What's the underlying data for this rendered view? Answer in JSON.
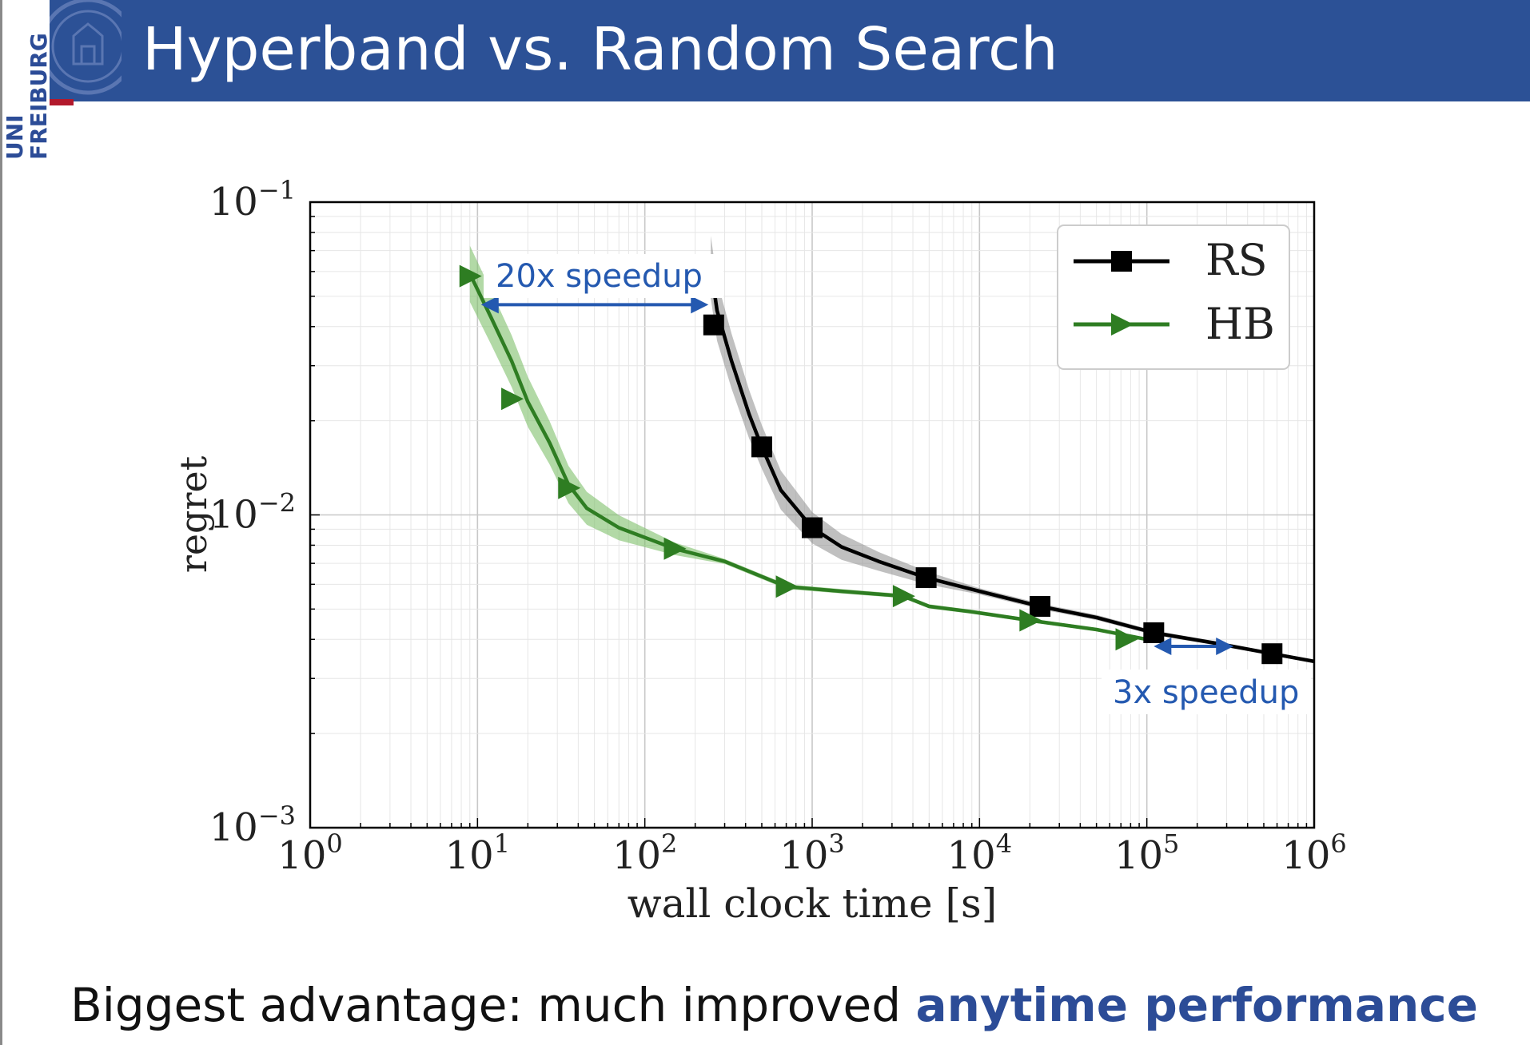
{
  "slide": {
    "title": "Hyperband vs. Random Search",
    "logo_line1": "UNI",
    "logo_line2": "FREIBURG",
    "caption_plain": "Biggest advantage: much improved ",
    "caption_emphasis": "anytime performance"
  },
  "colors": {
    "banner": "#2c5196",
    "rs": "#000000",
    "hb": "#2e7d22",
    "hb_band": "#7fbf6a",
    "rs_band": "#8c8c8c",
    "annotation": "#2459b0",
    "emphasis": "#2c4c97"
  },
  "chart_data": {
    "type": "line",
    "xscale": "log",
    "yscale": "log",
    "xlim": [
      1,
      1000000
    ],
    "ylim": [
      0.001,
      0.1
    ],
    "xlabel": "wall clock time [s]",
    "ylabel": "regret",
    "grid": true,
    "legend_position": "top-right",
    "x_ticks": [
      {
        "value": 1,
        "base": "10",
        "exp": "0"
      },
      {
        "value": 10,
        "base": "10",
        "exp": "1"
      },
      {
        "value": 100,
        "base": "10",
        "exp": "2"
      },
      {
        "value": 1000,
        "base": "10",
        "exp": "3"
      },
      {
        "value": 10000,
        "base": "10",
        "exp": "4"
      },
      {
        "value": 100000,
        "base": "10",
        "exp": "5"
      },
      {
        "value": 1000000,
        "base": "10",
        "exp": "6"
      }
    ],
    "y_ticks": [
      {
        "value": 0.001,
        "base": "10",
        "exp": "−3"
      },
      {
        "value": 0.01,
        "base": "10",
        "exp": "−2"
      },
      {
        "value": 0.1,
        "base": "10",
        "exp": "−1"
      }
    ],
    "series": [
      {
        "name": "RS",
        "marker": "square",
        "line": [
          [
            248,
            0.062
          ],
          [
            270,
            0.045
          ],
          [
            330,
            0.031
          ],
          [
            420,
            0.021
          ],
          [
            500,
            0.0165
          ],
          [
            650,
            0.012
          ],
          [
            1000,
            0.0091
          ],
          [
            1500,
            0.0079
          ],
          [
            2500,
            0.0071
          ],
          [
            4800,
            0.0063
          ],
          [
            10000,
            0.0057
          ],
          [
            23000,
            0.0051
          ],
          [
            50000,
            0.0047
          ],
          [
            110000,
            0.0042
          ],
          [
            250000,
            0.0039
          ],
          [
            560000,
            0.0036
          ],
          [
            1000000,
            0.0034
          ]
        ],
        "markers": [
          [
            258,
            0.0405
          ],
          [
            500,
            0.0165
          ],
          [
            1000,
            0.0091
          ],
          [
            4800,
            0.0063
          ],
          [
            23000,
            0.0051
          ],
          [
            110000,
            0.0042
          ],
          [
            560000,
            0.0036
          ]
        ],
        "band_width": [
          [
            248,
            0.1
          ],
          [
            500,
            0.07
          ],
          [
            1000,
            0.05
          ],
          [
            2500,
            0.03
          ],
          [
            10000,
            0.01
          ],
          [
            1000000,
            0.005
          ]
        ]
      },
      {
        "name": "HB",
        "marker": "triangle-right",
        "line": [
          [
            9,
            0.059
          ],
          [
            12,
            0.043
          ],
          [
            16,
            0.031
          ],
          [
            20,
            0.023
          ],
          [
            27,
            0.017
          ],
          [
            35,
            0.0125
          ],
          [
            45,
            0.0105
          ],
          [
            70,
            0.0091
          ],
          [
            150,
            0.0078
          ],
          [
            300,
            0.0071
          ],
          [
            700,
            0.0059
          ],
          [
            1500,
            0.0057
          ],
          [
            3500,
            0.0055
          ],
          [
            5000,
            0.0051
          ],
          [
            9000,
            0.0049
          ],
          [
            20000,
            0.0046
          ],
          [
            50000,
            0.0043
          ],
          [
            100000,
            0.004
          ]
        ],
        "markers": [
          [
            9,
            0.058
          ],
          [
            16,
            0.0235
          ],
          [
            35,
            0.0122
          ],
          [
            150,
            0.0078
          ],
          [
            700,
            0.0059
          ],
          [
            3500,
            0.0055
          ],
          [
            20000,
            0.0046
          ],
          [
            75000,
            0.004
          ]
        ],
        "band_width": [
          [
            9,
            0.09
          ],
          [
            20,
            0.08
          ],
          [
            35,
            0.06
          ],
          [
            70,
            0.04
          ],
          [
            150,
            0.02
          ],
          [
            300,
            0.008
          ],
          [
            100000,
            0.005
          ]
        ]
      }
    ],
    "annotations": [
      {
        "text": "20x speedup",
        "arrow_from": [
          10.5,
          0.047
        ],
        "arrow_to": [
          240,
          0.047
        ]
      },
      {
        "text": "3x speedup",
        "arrow_from": [
          110000,
          0.0038
        ],
        "arrow_to": [
          330000,
          0.0038
        ]
      }
    ]
  }
}
